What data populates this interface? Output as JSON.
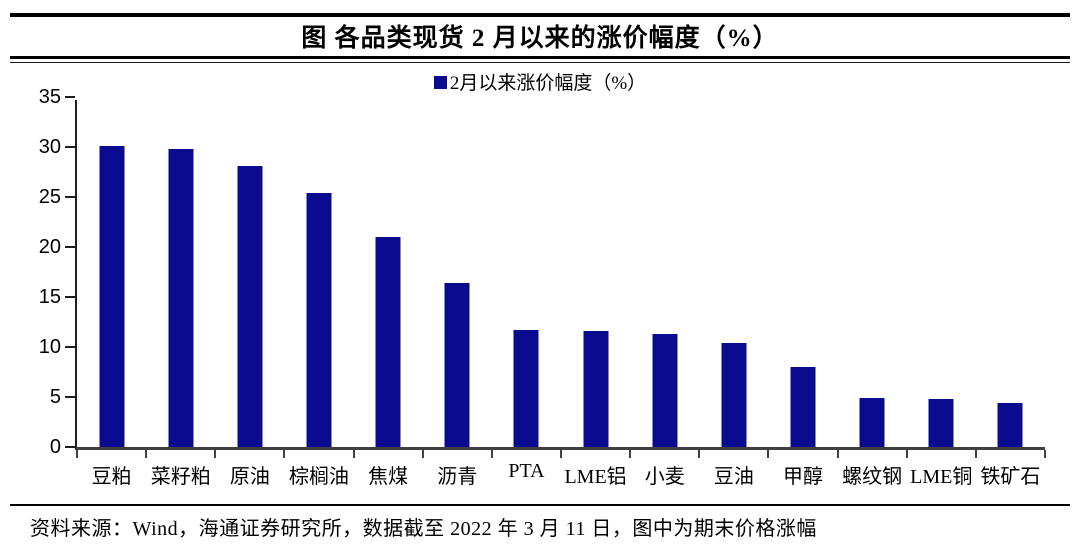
{
  "title": "图 各品类现货 2 月以来的涨价幅度（%）",
  "legend": {
    "swatch_color": "#0b0b8f",
    "label": "2月以来涨价幅度（%）"
  },
  "footer": "资料来源：Wind，海通证券研究所，数据截至 2022 年 3 月 11 日，图中为期末价格涨幅",
  "chart_data": {
    "type": "bar",
    "title": "图 各品类现货 2 月以来的涨价幅度（%）",
    "legend_entries": [
      "2月以来涨价幅度（%）"
    ],
    "legend_position": "top",
    "categories": [
      "豆粕",
      "菜籽粕",
      "原油",
      "棕榈油",
      "焦煤",
      "沥青",
      "PTA",
      "LME铝",
      "小麦",
      "豆油",
      "甲醇",
      "螺纹钢",
      "LME铜",
      "铁矿石"
    ],
    "values": [
      30.1,
      29.8,
      28.1,
      25.4,
      21.0,
      16.4,
      11.7,
      11.6,
      11.3,
      10.4,
      8.0,
      4.9,
      4.8,
      4.4
    ],
    "xlabel": "",
    "ylabel": "",
    "ylim": [
      0,
      35
    ],
    "yticks": [
      0,
      5,
      10,
      15,
      20,
      25,
      30,
      35
    ],
    "grid": false,
    "bar_color": "#0b0b8f",
    "axis_color": "#404040"
  }
}
